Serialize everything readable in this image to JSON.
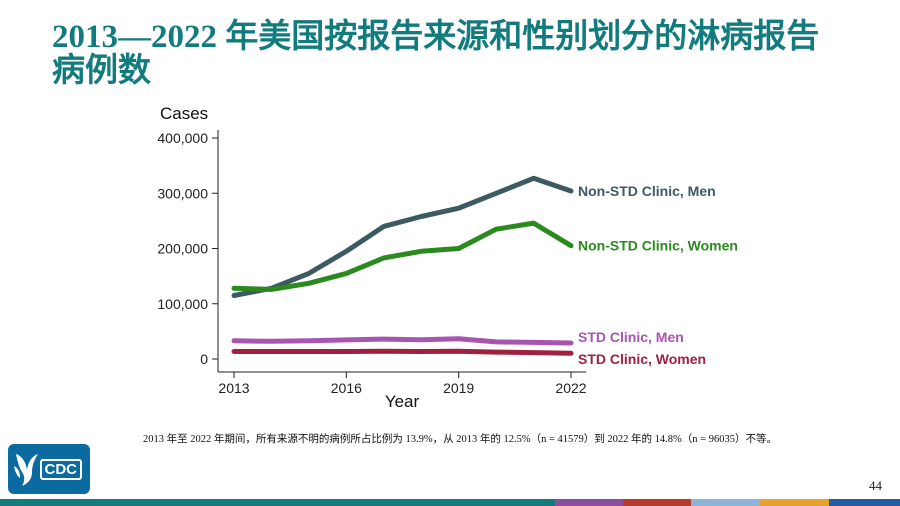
{
  "slide": {
    "title": "2013—2022 年美国按报告来源和性别划分的淋病报告病例数",
    "footnote": "2013 年至 2022 年期间，所有来源不明的病例所占比例为 13.9%，从 2013 年的 12.5%（n = 41579）到 2022 年的 14.8%（n = 96035）不等。",
    "page_number": "44",
    "logo_text": "CDC",
    "logo_icon": "hhs-eagle-icon",
    "colors": {
      "title": "#127b7e",
      "logo_bg": "#0b6ba0",
      "bottom_bar": [
        "#127b7e",
        "#8a4f9e",
        "#b83a2c",
        "#8fb4da",
        "#e8a12b",
        "#1f5da8"
      ]
    }
  },
  "chart_data": {
    "type": "line",
    "title": "",
    "xlabel": "Year",
    "ylabel": "Cases",
    "x": [
      2013,
      2014,
      2015,
      2016,
      2017,
      2018,
      2019,
      2020,
      2021,
      2022
    ],
    "xticks": [
      2013,
      2016,
      2019,
      2022
    ],
    "xlim": [
      2013,
      2022
    ],
    "yticks": [
      0,
      100000,
      200000,
      300000,
      400000
    ],
    "ytick_labels": [
      "0",
      "100,000",
      "200,000",
      "300,000",
      "400,000"
    ],
    "ylim": [
      0,
      400000
    ],
    "grid": false,
    "legend": "direct labels at line ends (right)",
    "series": [
      {
        "name": "Non-STD Clinic, Men",
        "color": "#3d5a63",
        "values": [
          115000,
          128000,
          155000,
          195000,
          240000,
          258000,
          273000,
          300000,
          327000,
          304000
        ]
      },
      {
        "name": "Non-STD Clinic, Women",
        "color": "#2b8a1e",
        "values": [
          128000,
          126000,
          137000,
          155000,
          183000,
          195000,
          200000,
          235000,
          246000,
          205000
        ]
      },
      {
        "name": "STD Clinic, Men",
        "color": "#a855b0",
        "values": [
          33000,
          32000,
          33000,
          34500,
          36000,
          35000,
          36500,
          31000,
          30000,
          29000
        ]
      },
      {
        "name": "STD Clinic, Women",
        "color": "#a0203f",
        "values": [
          13500,
          13500,
          13500,
          13500,
          14000,
          13500,
          14000,
          12500,
          11500,
          10500
        ]
      }
    ]
  }
}
